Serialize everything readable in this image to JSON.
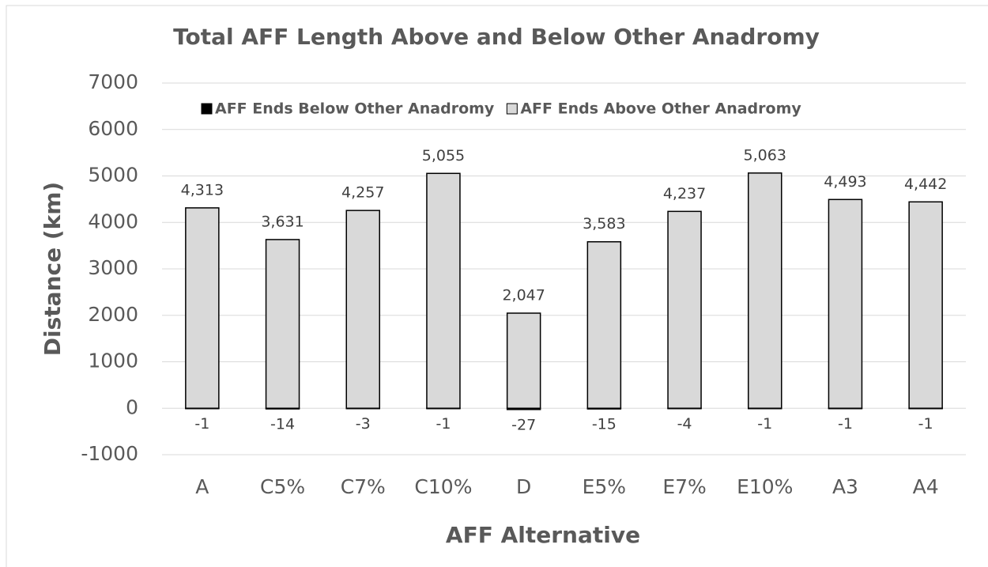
{
  "chart_data": {
    "type": "bar",
    "stacked": true,
    "title": "Total AFF Length Above and Below Other Anadromy",
    "x_label": "AFF Alternative",
    "y_label": "Distance (km)",
    "categories": [
      "A",
      "C5%",
      "C7%",
      "C10%",
      "D",
      "E5%",
      "E7%",
      "E10%",
      "A3",
      "A4"
    ],
    "series": [
      {
        "name": "AFF Ends Below Other Anadromy",
        "color": "#000000",
        "values": [
          -1,
          -14,
          -3,
          -1,
          -27,
          -15,
          -4,
          -1,
          -1,
          -1
        ]
      },
      {
        "name": "AFF Ends Above Other Anadromy",
        "color": "#d9d9d9",
        "values": [
          4313,
          3631,
          4257,
          5055,
          2047,
          3583,
          4237,
          5063,
          4493,
          4442
        ],
        "value_labels": [
          "4,313",
          "3,631",
          "4,257",
          "5,055",
          "2,047",
          "3,583",
          "4,237",
          "5,063",
          "4,493",
          "4,442"
        ]
      }
    ],
    "ylim": [
      -1000,
      7000
    ],
    "yticks": [
      -1000,
      0,
      1000,
      2000,
      3000,
      4000,
      5000,
      6000,
      7000
    ],
    "grid": true,
    "legend": "top"
  }
}
